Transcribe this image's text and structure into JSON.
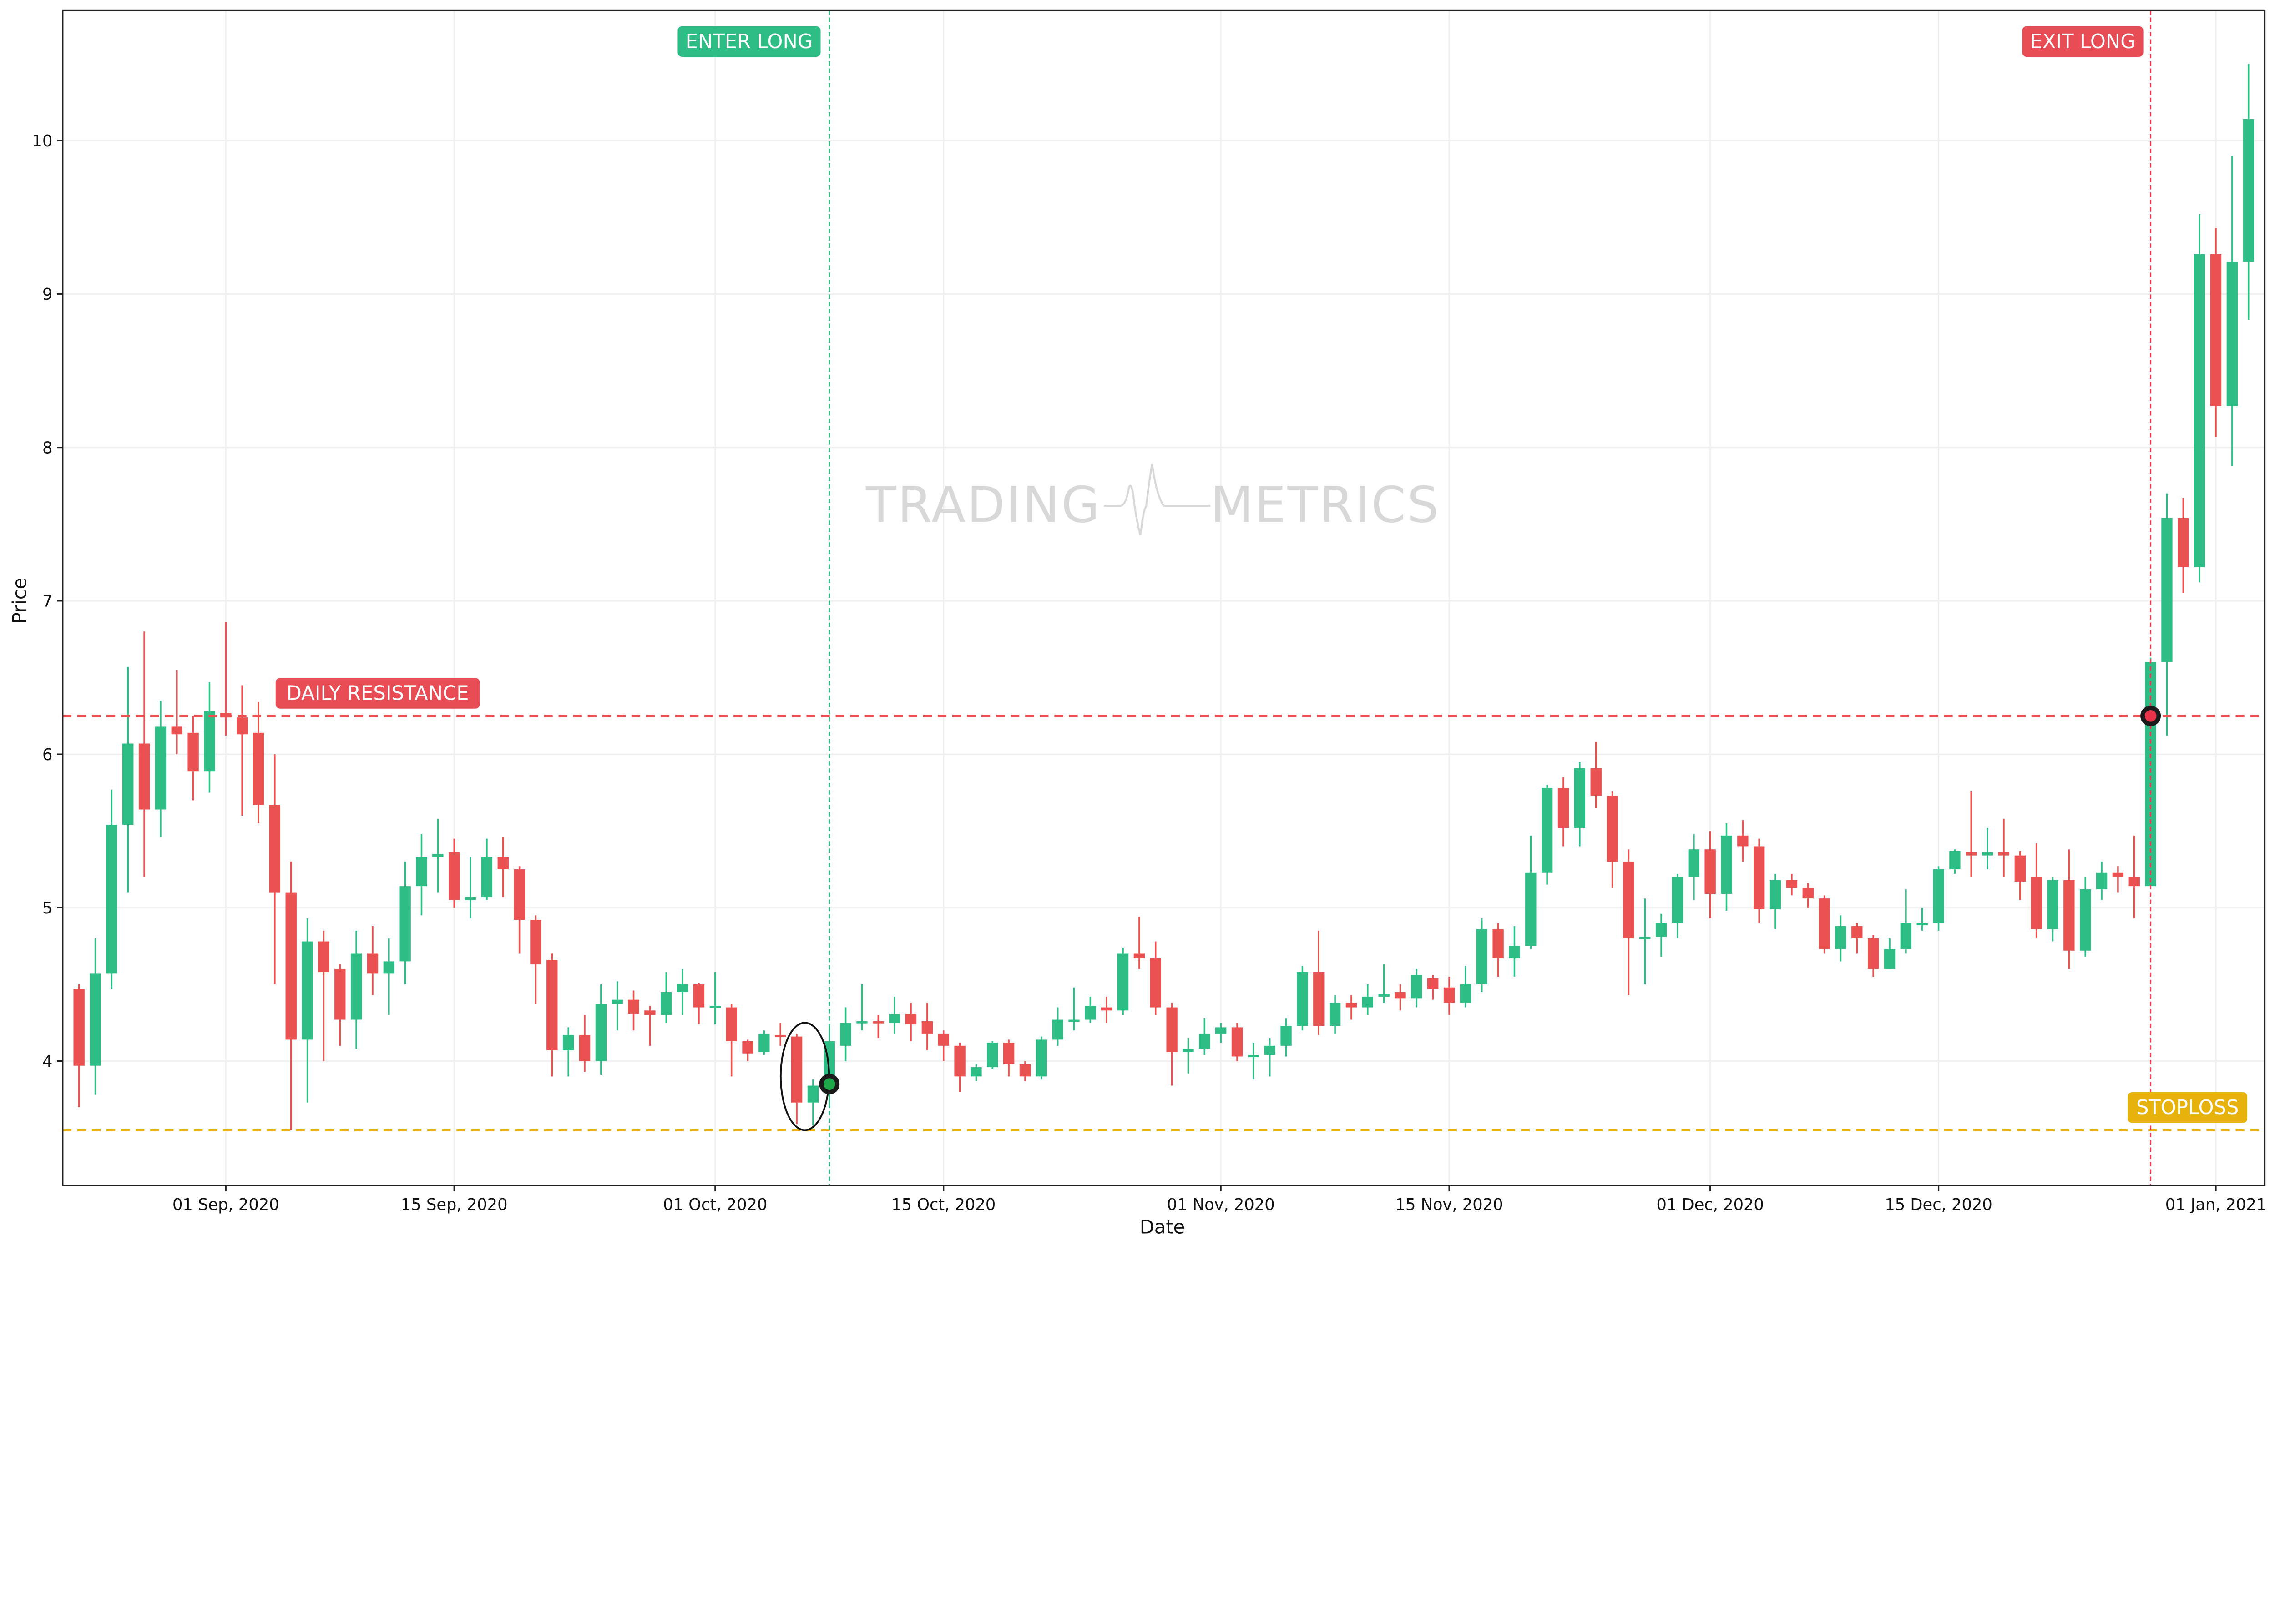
{
  "chart_data": {
    "type": "candlestick",
    "xlabel": "Date",
    "ylabel": "Price",
    "ylim": [
      3.19,
      10.85
    ],
    "xlim": [
      "2020-08-22",
      "2021-01-04"
    ],
    "grid": true,
    "yticks": [
      4,
      5,
      6,
      7,
      8,
      9,
      10
    ],
    "xticks": [
      {
        "date": "2020-09-01",
        "label": "01 Sep, 2020"
      },
      {
        "date": "2020-09-15",
        "label": "15 Sep, 2020"
      },
      {
        "date": "2020-10-01",
        "label": "01 Oct, 2020"
      },
      {
        "date": "2020-10-15",
        "label": "15 Oct, 2020"
      },
      {
        "date": "2020-11-01",
        "label": "01 Nov, 2020"
      },
      {
        "date": "2020-11-15",
        "label": "15 Nov, 2020"
      },
      {
        "date": "2020-12-01",
        "label": "01 Dec, 2020"
      },
      {
        "date": "2020-12-15",
        "label": "15 Dec, 2020"
      },
      {
        "date": "2021-01-01",
        "label": "01 Jan, 2021"
      }
    ],
    "colors": {
      "up": "#2ebd85",
      "down": "#ea5252",
      "stoploss": "#e8b20c",
      "resistance": "#ea5252",
      "enter": "#2ebd85",
      "exit": "#ea3a52"
    },
    "candles_columns": [
      "date",
      "open",
      "high",
      "low",
      "close"
    ],
    "candles": [
      [
        "2020-08-23",
        4.47,
        4.5,
        3.7,
        3.97
      ],
      [
        "2020-08-24",
        3.97,
        4.8,
        3.78,
        4.57
      ],
      [
        "2020-08-25",
        4.57,
        5.77,
        4.47,
        5.54
      ],
      [
        "2020-08-26",
        5.54,
        6.57,
        5.1,
        6.07
      ],
      [
        "2020-08-27",
        6.07,
        6.8,
        5.2,
        5.64
      ],
      [
        "2020-08-28",
        5.64,
        6.35,
        5.46,
        6.18
      ],
      [
        "2020-08-29",
        6.18,
        6.55,
        6.0,
        6.13
      ],
      [
        "2020-08-30",
        6.14,
        6.25,
        5.7,
        5.89
      ],
      [
        "2020-08-31",
        5.89,
        6.47,
        5.75,
        6.28
      ],
      [
        "2020-09-01",
        6.27,
        6.86,
        6.12,
        6.24
      ],
      [
        "2020-09-02",
        6.24,
        6.45,
        5.6,
        6.13
      ],
      [
        "2020-09-03",
        6.14,
        6.34,
        5.55,
        5.67
      ],
      [
        "2020-09-04",
        5.67,
        6.0,
        4.5,
        5.1
      ],
      [
        "2020-09-05",
        5.1,
        5.3,
        3.55,
        4.14
      ],
      [
        "2020-09-06",
        4.14,
        4.93,
        3.73,
        4.78
      ],
      [
        "2020-09-07",
        4.78,
        4.85,
        4.0,
        4.58
      ],
      [
        "2020-09-08",
        4.6,
        4.63,
        4.1,
        4.27
      ],
      [
        "2020-09-09",
        4.27,
        4.85,
        4.08,
        4.7
      ],
      [
        "2020-09-10",
        4.7,
        4.88,
        4.43,
        4.57
      ],
      [
        "2020-09-11",
        4.57,
        4.8,
        4.3,
        4.65
      ],
      [
        "2020-09-12",
        4.65,
        5.3,
        4.5,
        5.14
      ],
      [
        "2020-09-13",
        5.14,
        5.48,
        4.95,
        5.33
      ],
      [
        "2020-09-14",
        5.33,
        5.58,
        5.1,
        5.35
      ],
      [
        "2020-09-15",
        5.36,
        5.45,
        5.0,
        5.05
      ],
      [
        "2020-09-16",
        5.05,
        5.33,
        4.93,
        5.07
      ],
      [
        "2020-09-17",
        5.07,
        5.45,
        5.05,
        5.33
      ],
      [
        "2020-09-18",
        5.33,
        5.46,
        5.07,
        5.25
      ],
      [
        "2020-09-19",
        5.25,
        5.27,
        4.7,
        4.92
      ],
      [
        "2020-09-20",
        4.92,
        4.95,
        4.37,
        4.63
      ],
      [
        "2020-09-21",
        4.66,
        4.7,
        3.9,
        4.07
      ],
      [
        "2020-09-22",
        4.07,
        4.22,
        3.9,
        4.17
      ],
      [
        "2020-09-23",
        4.17,
        4.3,
        3.93,
        4.0
      ],
      [
        "2020-09-24",
        4.0,
        4.5,
        3.91,
        4.37
      ],
      [
        "2020-09-25",
        4.37,
        4.52,
        4.2,
        4.4
      ],
      [
        "2020-09-26",
        4.4,
        4.46,
        4.2,
        4.31
      ],
      [
        "2020-09-27",
        4.33,
        4.36,
        4.1,
        4.3
      ],
      [
        "2020-09-28",
        4.3,
        4.58,
        4.25,
        4.45
      ],
      [
        "2020-09-29",
        4.45,
        4.6,
        4.3,
        4.5
      ],
      [
        "2020-09-30",
        4.5,
        4.51,
        4.24,
        4.35
      ],
      [
        "2020-10-01",
        4.35,
        4.58,
        4.24,
        4.36
      ],
      [
        "2020-10-02",
        4.35,
        4.37,
        3.9,
        4.13
      ],
      [
        "2020-10-03",
        4.13,
        4.14,
        4.0,
        4.05
      ],
      [
        "2020-10-04",
        4.06,
        4.2,
        4.04,
        4.18
      ],
      [
        "2020-10-05",
        4.17,
        4.25,
        4.1,
        4.16
      ],
      [
        "2020-10-06",
        4.16,
        4.18,
        3.59,
        3.73
      ],
      [
        "2020-10-07",
        3.73,
        3.88,
        3.58,
        3.84
      ],
      [
        "2020-10-08",
        3.84,
        4.22,
        3.7,
        4.13
      ],
      [
        "2020-10-09",
        4.1,
        4.35,
        4.0,
        4.25
      ],
      [
        "2020-10-10",
        4.25,
        4.5,
        4.2,
        4.26
      ],
      [
        "2020-10-11",
        4.26,
        4.3,
        4.15,
        4.25
      ],
      [
        "2020-10-12",
        4.25,
        4.42,
        4.18,
        4.31
      ],
      [
        "2020-10-13",
        4.31,
        4.38,
        4.13,
        4.24
      ],
      [
        "2020-10-14",
        4.26,
        4.38,
        4.07,
        4.18
      ],
      [
        "2020-10-15",
        4.18,
        4.2,
        4.0,
        4.1
      ],
      [
        "2020-10-16",
        4.1,
        4.12,
        3.8,
        3.9
      ],
      [
        "2020-10-17",
        3.9,
        3.98,
        3.87,
        3.96
      ],
      [
        "2020-10-18",
        3.96,
        4.13,
        3.95,
        4.12
      ],
      [
        "2020-10-19",
        4.12,
        4.14,
        3.9,
        3.98
      ],
      [
        "2020-10-20",
        3.98,
        4.0,
        3.87,
        3.9
      ],
      [
        "2020-10-21",
        3.9,
        4.16,
        3.88,
        4.14
      ],
      [
        "2020-10-22",
        4.14,
        4.35,
        4.1,
        4.27
      ],
      [
        "2020-10-23",
        4.26,
        4.48,
        4.2,
        4.27
      ],
      [
        "2020-10-24",
        4.27,
        4.42,
        4.25,
        4.36
      ],
      [
        "2020-10-25",
        4.35,
        4.42,
        4.25,
        4.33
      ],
      [
        "2020-10-26",
        4.33,
        4.74,
        4.3,
        4.7
      ],
      [
        "2020-10-27",
        4.7,
        4.94,
        4.6,
        4.67
      ],
      [
        "2020-10-28",
        4.67,
        4.78,
        4.3,
        4.35
      ],
      [
        "2020-10-29",
        4.35,
        4.38,
        3.84,
        4.06
      ],
      [
        "2020-10-30",
        4.06,
        4.15,
        3.92,
        4.08
      ],
      [
        "2020-10-31",
        4.08,
        4.28,
        4.04,
        4.18
      ],
      [
        "2020-11-01",
        4.18,
        4.25,
        4.12,
        4.22
      ],
      [
        "2020-11-02",
        4.22,
        4.25,
        4.0,
        4.03
      ],
      [
        "2020-11-03",
        4.03,
        4.12,
        3.88,
        4.04
      ],
      [
        "2020-11-04",
        4.04,
        4.15,
        3.9,
        4.1
      ],
      [
        "2020-11-05",
        4.1,
        4.28,
        4.03,
        4.23
      ],
      [
        "2020-11-06",
        4.23,
        4.62,
        4.2,
        4.58
      ],
      [
        "2020-11-07",
        4.58,
        4.85,
        4.17,
        4.23
      ],
      [
        "2020-11-08",
        4.23,
        4.43,
        4.18,
        4.38
      ],
      [
        "2020-11-09",
        4.38,
        4.43,
        4.27,
        4.35
      ],
      [
        "2020-11-10",
        4.35,
        4.5,
        4.3,
        4.42
      ],
      [
        "2020-11-11",
        4.42,
        4.63,
        4.38,
        4.44
      ],
      [
        "2020-11-12",
        4.45,
        4.5,
        4.33,
        4.41
      ],
      [
        "2020-11-13",
        4.41,
        4.6,
        4.35,
        4.56
      ],
      [
        "2020-11-14",
        4.54,
        4.56,
        4.4,
        4.47
      ],
      [
        "2020-11-15",
        4.48,
        4.55,
        4.3,
        4.38
      ],
      [
        "2020-11-16",
        4.38,
        4.62,
        4.35,
        4.5
      ],
      [
        "2020-11-17",
        4.5,
        4.93,
        4.45,
        4.86
      ],
      [
        "2020-11-18",
        4.86,
        4.9,
        4.55,
        4.67
      ],
      [
        "2020-11-19",
        4.67,
        4.88,
        4.55,
        4.75
      ],
      [
        "2020-11-20",
        4.75,
        5.47,
        4.73,
        5.23
      ],
      [
        "2020-11-21",
        5.23,
        5.8,
        5.15,
        5.78
      ],
      [
        "2020-11-22",
        5.78,
        5.85,
        5.4,
        5.52
      ],
      [
        "2020-11-23",
        5.52,
        5.95,
        5.4,
        5.91
      ],
      [
        "2020-11-24",
        5.91,
        6.08,
        5.65,
        5.73
      ],
      [
        "2020-11-25",
        5.73,
        5.76,
        5.13,
        5.3
      ],
      [
        "2020-11-26",
        5.3,
        5.38,
        4.43,
        4.8
      ],
      [
        "2020-11-27",
        4.8,
        5.06,
        4.5,
        4.81
      ],
      [
        "2020-11-28",
        4.81,
        4.96,
        4.68,
        4.9
      ],
      [
        "2020-11-29",
        4.9,
        5.22,
        4.8,
        5.2
      ],
      [
        "2020-11-30",
        5.2,
        5.48,
        5.05,
        5.38
      ],
      [
        "2020-12-01",
        5.38,
        5.5,
        4.93,
        5.09
      ],
      [
        "2020-12-02",
        5.09,
        5.55,
        4.98,
        5.47
      ],
      [
        "2020-12-03",
        5.47,
        5.57,
        5.3,
        5.4
      ],
      [
        "2020-12-04",
        5.4,
        5.45,
        4.9,
        4.99
      ],
      [
        "2020-12-05",
        4.99,
        5.22,
        4.86,
        5.18
      ],
      [
        "2020-12-06",
        5.18,
        5.22,
        5.08,
        5.13
      ],
      [
        "2020-12-07",
        5.13,
        5.16,
        5.0,
        5.06
      ],
      [
        "2020-12-08",
        5.06,
        5.08,
        4.7,
        4.73
      ],
      [
        "2020-12-09",
        4.73,
        4.95,
        4.65,
        4.88
      ],
      [
        "2020-12-10",
        4.88,
        4.9,
        4.7,
        4.8
      ],
      [
        "2020-12-11",
        4.8,
        4.82,
        4.55,
        4.6
      ],
      [
        "2020-12-12",
        4.6,
        4.8,
        4.6,
        4.73
      ],
      [
        "2020-12-13",
        4.73,
        5.12,
        4.7,
        4.9
      ],
      [
        "2020-12-14",
        4.89,
        5.0,
        4.85,
        4.9
      ],
      [
        "2020-12-15",
        4.9,
        5.27,
        4.85,
        5.25
      ],
      [
        "2020-12-16",
        5.25,
        5.38,
        5.22,
        5.37
      ],
      [
        "2020-12-17",
        5.36,
        5.76,
        5.2,
        5.34
      ],
      [
        "2020-12-18",
        5.34,
        5.52,
        5.25,
        5.36
      ],
      [
        "2020-12-19",
        5.36,
        5.58,
        5.2,
        5.34
      ],
      [
        "2020-12-20",
        5.34,
        5.37,
        5.05,
        5.17
      ],
      [
        "2020-12-21",
        5.2,
        5.42,
        4.8,
        4.86
      ],
      [
        "2020-12-22",
        4.86,
        5.2,
        4.78,
        5.18
      ],
      [
        "2020-12-23",
        5.18,
        5.38,
        4.6,
        4.72
      ],
      [
        "2020-12-24",
        4.72,
        5.2,
        4.68,
        5.12
      ],
      [
        "2020-12-25",
        5.12,
        5.3,
        5.05,
        5.23
      ],
      [
        "2020-12-26",
        5.23,
        5.27,
        5.1,
        5.2
      ],
      [
        "2020-12-27",
        5.2,
        5.47,
        4.93,
        5.14
      ],
      [
        "2020-12-28",
        5.14,
        6.63,
        5.14,
        6.6
      ],
      [
        "2020-12-29",
        6.6,
        7.7,
        6.12,
        7.54
      ],
      [
        "2020-12-30",
        7.54,
        7.67,
        7.05,
        7.22
      ],
      [
        "2020-12-31",
        7.22,
        9.52,
        7.12,
        9.26
      ],
      [
        "2021-01-01",
        9.26,
        9.43,
        8.07,
        8.27
      ],
      [
        "2021-01-02",
        8.27,
        9.9,
        7.88,
        9.21
      ],
      [
        "2021-01-03",
        9.21,
        10.5,
        8.83,
        10.14
      ]
    ],
    "annotations": {
      "resistance": {
        "label": "DAILY RESISTANCE",
        "price": 6.25
      },
      "stoploss": {
        "label": "STOPLOSS",
        "price": 3.55
      },
      "enter": {
        "label": "ENTER LONG",
        "date": "2020-10-08",
        "price": 3.85
      },
      "exit": {
        "label": "EXIT LONG",
        "date": "2020-12-28",
        "price": 6.25
      },
      "highlight": {
        "from": "2020-10-06",
        "to": "2020-10-07",
        "low": 3.55,
        "high": 4.25
      }
    }
  },
  "watermark": {
    "left": "TRADING",
    "right": "METRICS"
  }
}
